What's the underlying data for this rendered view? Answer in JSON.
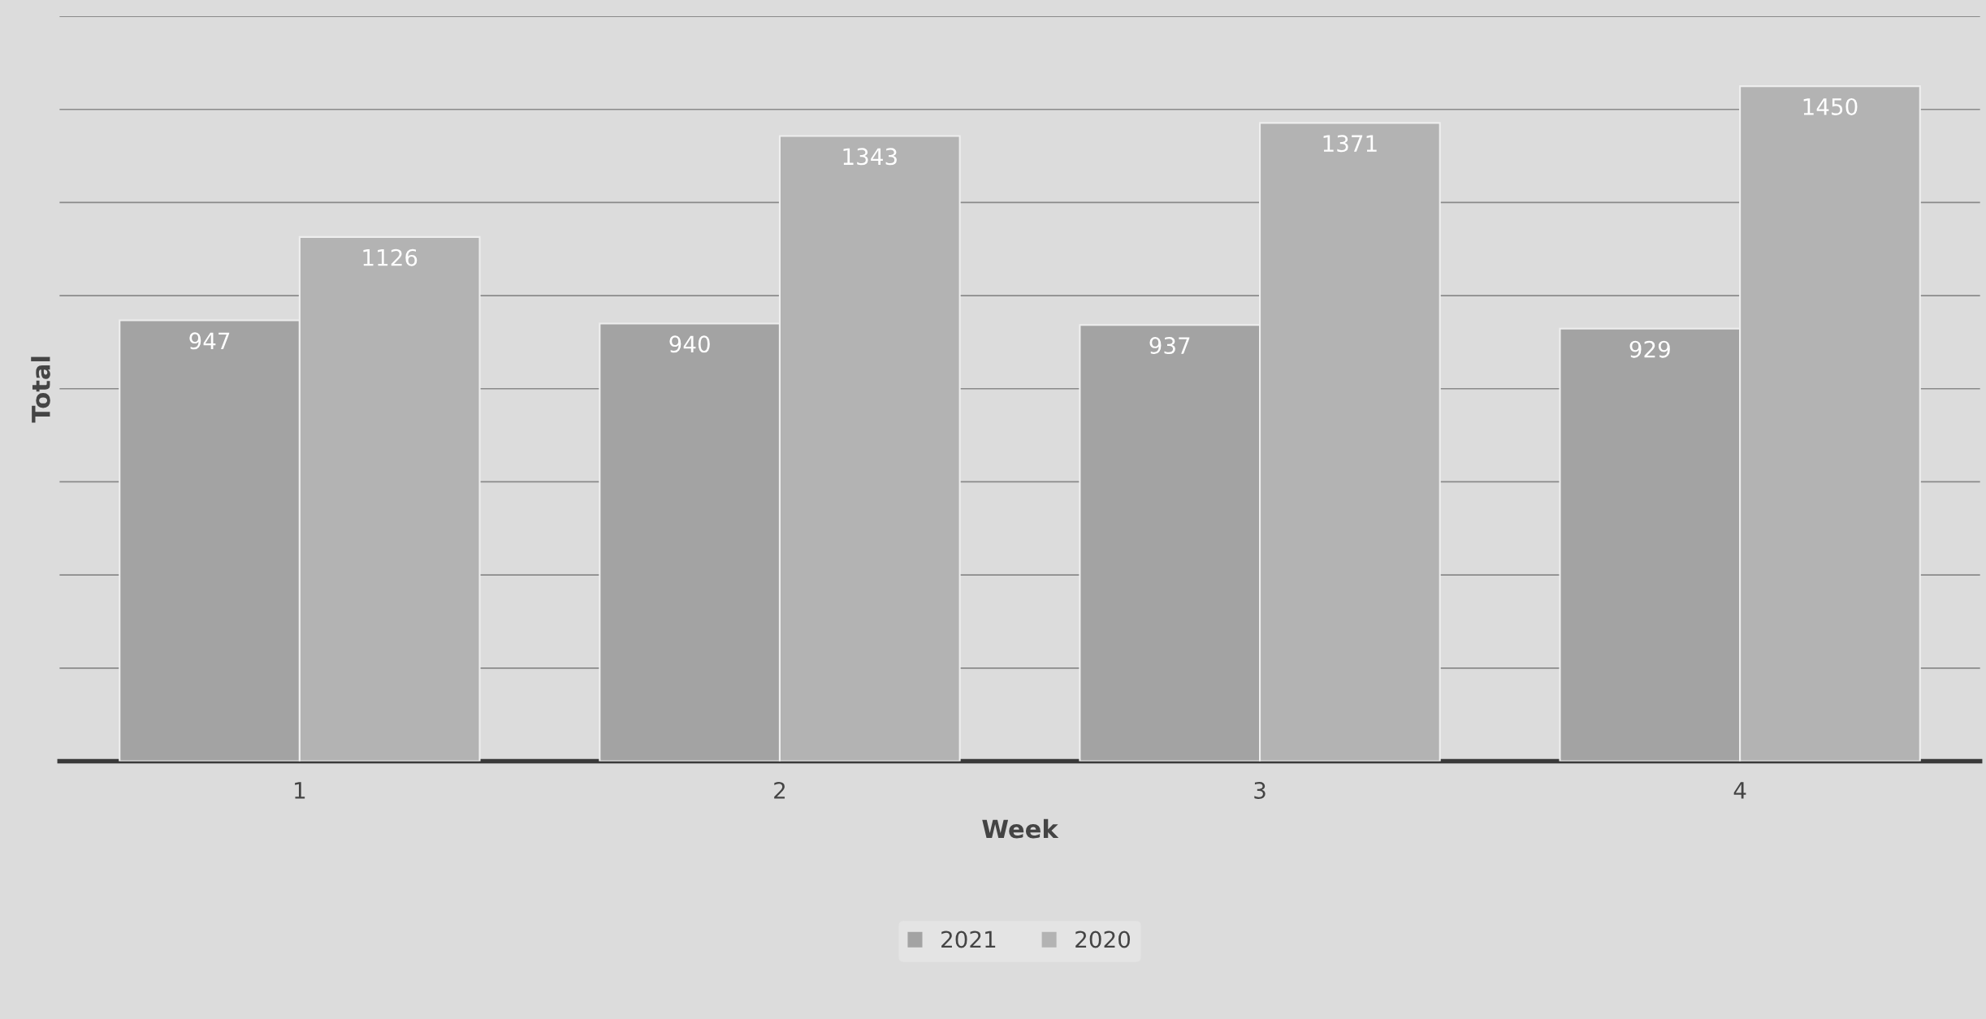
{
  "chart_data": {
    "type": "bar",
    "xlabel": "Week",
    "ylabel": "Total",
    "categories": [
      "1",
      "2",
      "3",
      "4"
    ],
    "series": [
      {
        "name": "2021",
        "color": "#a3a3a3",
        "values": [
          947,
          940,
          937,
          929
        ]
      },
      {
        "name": "2020",
        "color": "#b3b3b3",
        "values": [
          1126,
          1343,
          1371,
          1450
        ]
      }
    ],
    "ylim": [
      0,
      1600
    ],
    "yticks": [
      {
        "value": 200,
        "label": null
      },
      {
        "value": 400,
        "label": null
      },
      {
        "value": 600,
        "label": null
      },
      {
        "value": 800,
        "label": null
      },
      {
        "value": 1000,
        "label": null
      },
      {
        "value": 1200,
        "label": null
      },
      {
        "value": 1400,
        "label": null
      },
      {
        "value": 1600,
        "label": null
      }
    ],
    "grid": "y",
    "legend": "bottom",
    "data_labels": true,
    "tick_labels": "x"
  }
}
